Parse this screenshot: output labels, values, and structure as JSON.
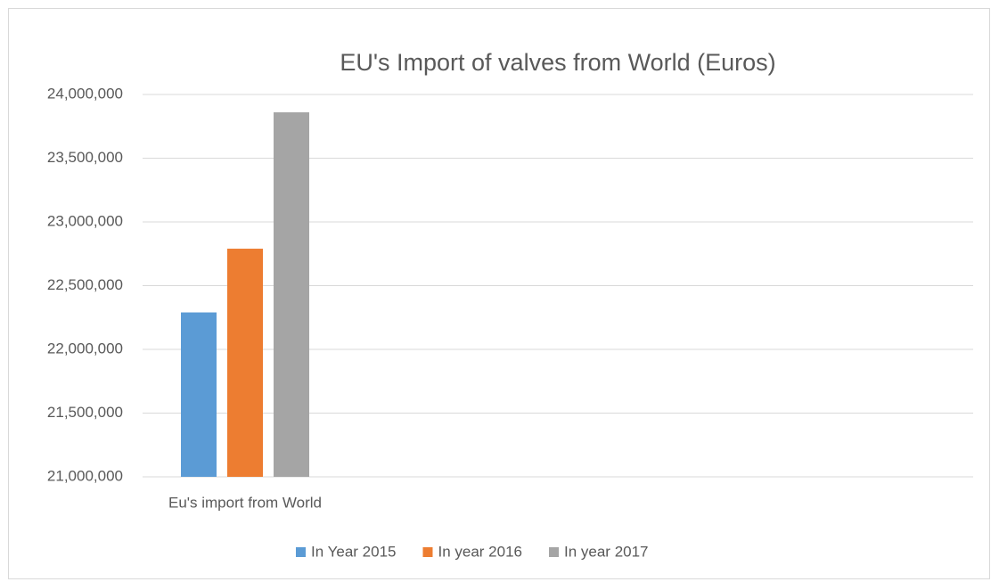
{
  "chart_data": {
    "type": "bar",
    "title": "EU's Import of valves from World (Euros)",
    "categories": [
      "Eu's import from World"
    ],
    "series": [
      {
        "name": "In Year 2015",
        "color": "#5b9bd5",
        "values": [
          22290000
        ]
      },
      {
        "name": "In year 2016",
        "color": "#ed7d31",
        "values": [
          22790000
        ]
      },
      {
        "name": "In year 2017",
        "color": "#a5a5a5",
        "values": [
          23860000
        ]
      }
    ],
    "ylim": [
      21000000,
      24000000
    ],
    "yticks": [
      {
        "value": 21000000,
        "label": "21,000,000"
      },
      {
        "value": 21500000,
        "label": "21,500,000"
      },
      {
        "value": 22000000,
        "label": "22,000,000"
      },
      {
        "value": 22500000,
        "label": "22,500,000"
      },
      {
        "value": 23000000,
        "label": "23,000,000"
      },
      {
        "value": 23500000,
        "label": "23,500,000"
      },
      {
        "value": 24000000,
        "label": "24,000,000"
      }
    ],
    "grid": true,
    "legend": "bottom"
  }
}
